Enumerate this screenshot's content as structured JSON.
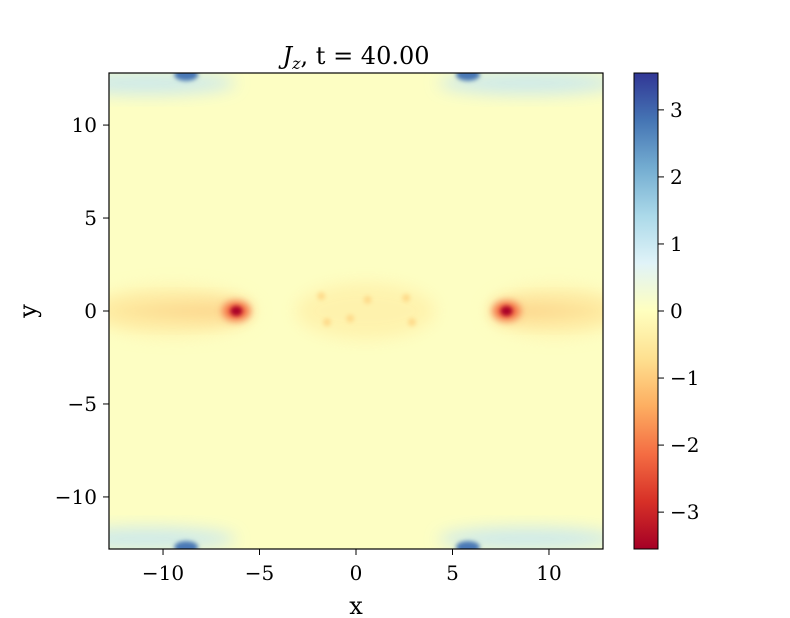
{
  "chart_data": {
    "type": "heatmap",
    "title_var": "J",
    "title_sub": "z",
    "title_rest": ",  t = 40.00",
    "xlabel": "x",
    "ylabel": "y",
    "xlim": [
      -12.8,
      12.8
    ],
    "ylim": [
      -12.8,
      12.8
    ],
    "xticks": [
      -10,
      -5,
      0,
      5,
      10
    ],
    "yticks": [
      -10,
      -5,
      0,
      5,
      10
    ],
    "xtick_labels": [
      "−10",
      "−5",
      "0",
      "5",
      "10"
    ],
    "ytick_labels": [
      "−10",
      "−5",
      "0",
      "5",
      "10"
    ],
    "colorbar": {
      "range": [
        -3.55,
        3.55
      ],
      "ticks": [
        -3,
        -2,
        -1,
        0,
        1,
        2,
        3
      ],
      "tick_labels": [
        "−3",
        "−2",
        "−1",
        "0",
        "1",
        "2",
        "3"
      ],
      "colormap": "RdYlBu",
      "colors_low_to_high": [
        "#a50026",
        "#d73027",
        "#f46d43",
        "#fdae61",
        "#fee090",
        "#ffffbf",
        "#e0f3f8",
        "#abd9e9",
        "#74add1",
        "#4575b4",
        "#313695"
      ]
    },
    "background_value": 0.05,
    "features": [
      {
        "kind": "current-sheet-tail",
        "x0": -12.8,
        "x1": -6.2,
        "y": 0,
        "value": -1.2
      },
      {
        "kind": "current-sheet-tail",
        "x0": 7.8,
        "x1": 12.8,
        "y": 0,
        "value": -1.2
      },
      {
        "kind": "negative-peak",
        "x": -6.2,
        "y": 0,
        "value": -3.5
      },
      {
        "kind": "negative-peak",
        "x": 7.8,
        "y": 0,
        "value": -3.5
      },
      {
        "kind": "positive-peak",
        "x": -8.8,
        "y": 12.7,
        "value": 3.5
      },
      {
        "kind": "positive-peak",
        "x": 5.8,
        "y": 12.7,
        "value": 3.5
      },
      {
        "kind": "positive-peak",
        "x": -8.8,
        "y": -12.7,
        "value": 3.5
      },
      {
        "kind": "positive-peak",
        "x": 5.8,
        "y": -12.7,
        "value": 3.5
      },
      {
        "kind": "central-blobs",
        "points": [
          [
            -1.8,
            0.8
          ],
          [
            -1.5,
            -0.6
          ],
          [
            2.6,
            0.7
          ],
          [
            2.9,
            -0.6
          ],
          [
            0.6,
            0.6
          ],
          [
            -0.3,
            -0.4
          ]
        ],
        "value": -0.8
      }
    ]
  }
}
